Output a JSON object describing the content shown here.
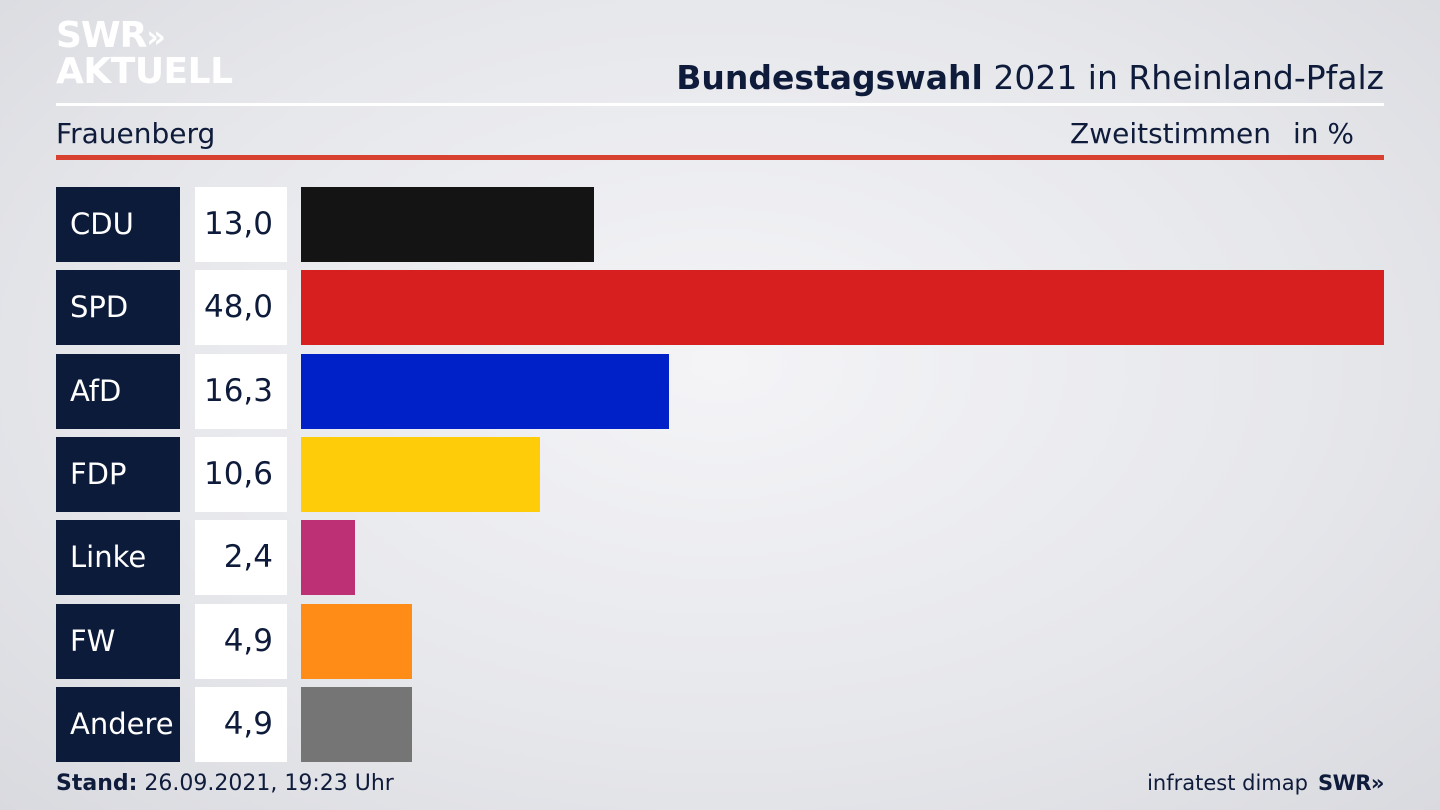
{
  "brand": {
    "line1": "SWR",
    "arrows": "»",
    "line2": "AKTUELL",
    "footer_logo": "SWR»"
  },
  "header": {
    "title_bold": "Bundestagswahl",
    "title_rest": " 2021 in Rheinland-Pfalz",
    "location": "Frauenberg",
    "measure": "Zweitstimmen",
    "unit": "in %"
  },
  "footer": {
    "stand_label": "Stand:",
    "stand_value": " 26.09.2021, 19:23 Uhr",
    "source": "infratest dimap"
  },
  "chart_data": {
    "type": "bar",
    "orientation": "horizontal",
    "categories": [
      "CDU",
      "SPD",
      "AfD",
      "FDP",
      "Linke",
      "FW",
      "Andere"
    ],
    "values": [
      13.0,
      48.0,
      16.3,
      10.6,
      2.4,
      4.9,
      4.9
    ],
    "value_labels": [
      "13,0",
      "48,0",
      "16,3",
      "10,6",
      "2,4",
      "4,9",
      "4,9"
    ],
    "colors": [
      "#141414",
      "#d71f1f",
      "#0021c8",
      "#ffcc0a",
      "#be3075",
      "#ff8c16",
      "#757575"
    ],
    "xlim": [
      0,
      48.0
    ]
  }
}
